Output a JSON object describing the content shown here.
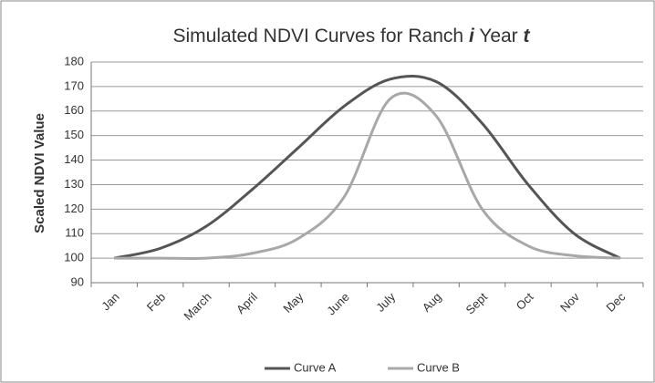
{
  "chart_data": {
    "type": "line",
    "title": [
      {
        "text": "Simulated NDVI Curves for Ranch ",
        "italic": false
      },
      {
        "text": "i",
        "italic": true
      },
      {
        "text": " Year ",
        "italic": false
      },
      {
        "text": "t",
        "italic": true
      }
    ],
    "y_label": "Scaled NDVI Value",
    "categories": [
      "Jan",
      "Feb",
      "March",
      "April",
      "May",
      "June",
      "July",
      "Aug",
      "Sept",
      "Oct",
      "Nov",
      "Dec"
    ],
    "series": [
      {
        "name": "Curve A",
        "color": "#555555",
        "values": [
          100,
          104,
          113,
          128,
          145,
          162,
          173,
          172,
          155,
          130,
          110,
          100
        ]
      },
      {
        "name": "Curve B",
        "color": "#a8a8a8",
        "values": [
          100,
          100,
          100,
          102,
          108,
          125,
          165,
          158,
          120,
          105,
          101,
          100
        ]
      }
    ],
    "ylim": [
      90,
      180
    ],
    "yticks": [
      90,
      100,
      110,
      120,
      130,
      140,
      150,
      160,
      170,
      180
    ],
    "grid": true,
    "legend": "bottom"
  }
}
